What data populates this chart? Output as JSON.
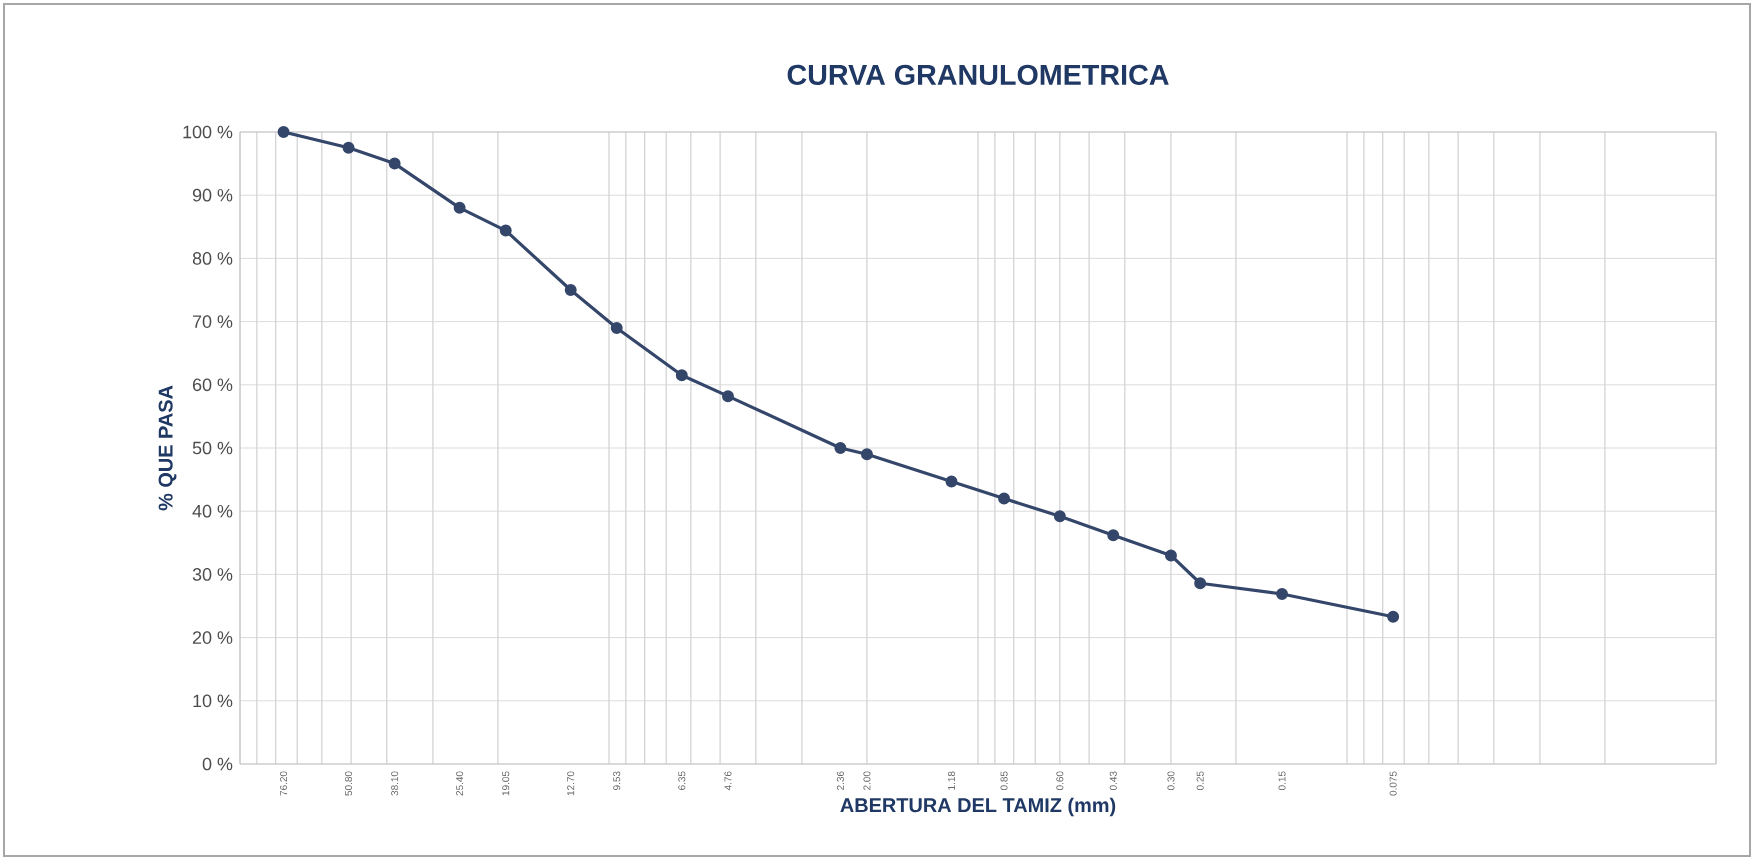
{
  "chart_data": {
    "type": "line",
    "title": "CURVA GRANULOMETRICA",
    "xlabel": "ABERTURA DEL TAMIZ (mm)",
    "ylabel": "% QUE PASA",
    "x": [
      76.2,
      50.8,
      38.1,
      25.4,
      19.05,
      12.7,
      9.53,
      6.35,
      4.76,
      2.36,
      2.0,
      1.18,
      0.85,
      0.6,
      0.43,
      0.3,
      0.25,
      0.15,
      0.075
    ],
    "series": [
      {
        "color": "#34466a",
        "values": [
          100,
          97.5,
          95,
          88,
          84.4,
          75,
          69,
          61.5,
          58.2,
          50,
          49,
          44.7,
          42,
          39.2,
          36.2,
          33,
          28.6,
          26.9,
          23.3
        ]
      }
    ],
    "log": "x",
    "xlim": [
      100,
      0.01
    ],
    "xticks": [
      {
        "value": 76.2,
        "label": "76.20"
      },
      {
        "value": 50.8,
        "label": "50.80"
      },
      {
        "value": 38.1,
        "label": "38.10"
      },
      {
        "value": 25.4,
        "label": "25.40"
      },
      {
        "value": 19.05,
        "label": "19.05"
      },
      {
        "value": 12.7,
        "label": "12.70"
      },
      {
        "value": 9.53,
        "label": "9.53"
      },
      {
        "value": 6.35,
        "label": "6.35"
      },
      {
        "value": 4.76,
        "label": "4.76"
      },
      {
        "value": 2.36,
        "label": "2.36"
      },
      {
        "value": 2.0,
        "label": "2.00"
      },
      {
        "value": 1.18,
        "label": "1.18"
      },
      {
        "value": 0.85,
        "label": "0.85"
      },
      {
        "value": 0.6,
        "label": "0.60"
      },
      {
        "value": 0.43,
        "label": "0.43"
      },
      {
        "value": 0.3,
        "label": "0.30"
      },
      {
        "value": 0.25,
        "label": "0.25"
      },
      {
        "value": 0.15,
        "label": "0.15"
      },
      {
        "value": 0.075,
        "label": "0.075"
      }
    ],
    "ylim": [
      0,
      100
    ],
    "yticks": [
      {
        "value": 0,
        "label": "0 %"
      },
      {
        "value": 10,
        "label": "10 %"
      },
      {
        "value": 20,
        "label": "20 %"
      },
      {
        "value": 30,
        "label": "30 %"
      },
      {
        "value": 40,
        "label": "40 %"
      },
      {
        "value": 50,
        "label": "50 %"
      },
      {
        "value": 60,
        "label": "60 %"
      },
      {
        "value": 70,
        "label": "70 %"
      },
      {
        "value": 80,
        "label": "80 %"
      },
      {
        "value": 90,
        "label": "90 %"
      },
      {
        "value": 100,
        "label": "100 %"
      }
    ],
    "grid": true,
    "marker": "circle",
    "line_style": "solid"
  }
}
